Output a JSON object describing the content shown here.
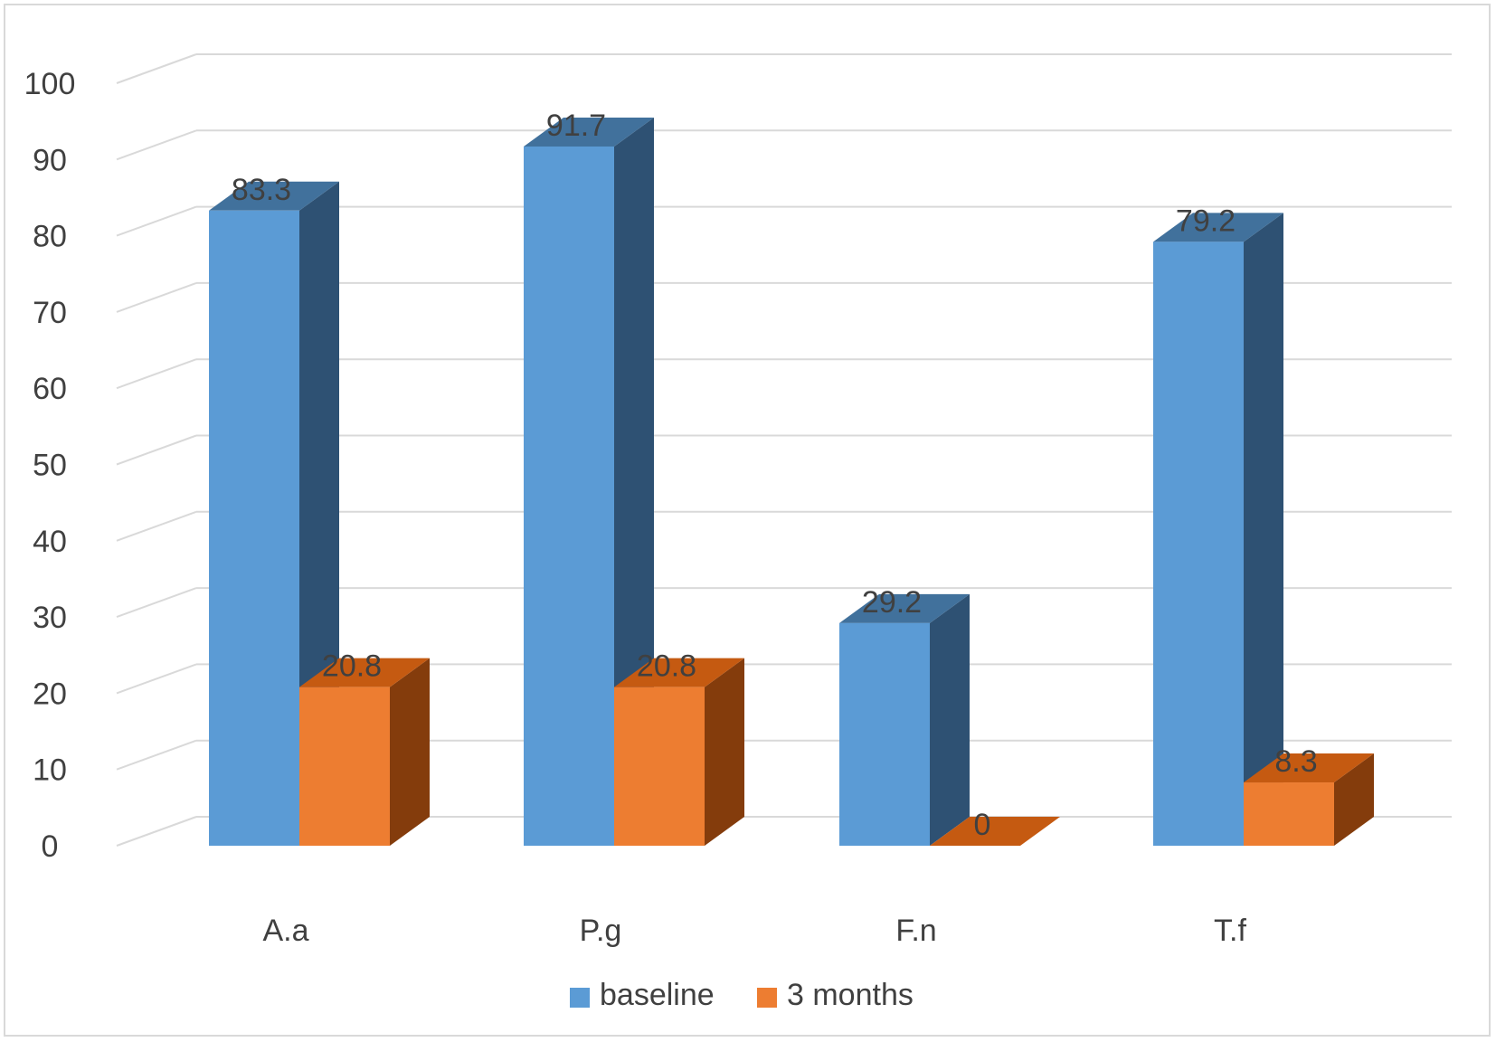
{
  "chart_data": {
    "type": "bar",
    "style": "3d-clustered-column",
    "title": "",
    "xlabel": "",
    "ylabel": "",
    "categories": [
      "A.a",
      "P.g",
      "F.n",
      "T.f"
    ],
    "series": [
      {
        "name": "baseline",
        "values": [
          83.3,
          91.7,
          29.2,
          79.2
        ],
        "color": "#5b9bd5",
        "side_color": "#2e5173",
        "top_color": "#41719c"
      },
      {
        "name": "3 months",
        "values": [
          20.8,
          20.8,
          0,
          8.3
        ],
        "color": "#ed7d31",
        "side_color": "#843c0c",
        "top_color": "#c55a11"
      }
    ],
    "data_labels": [
      [
        "83.3",
        "91.7",
        "29.2",
        "79.2"
      ],
      [
        "20.8",
        "20.8",
        "0",
        "8.3"
      ]
    ],
    "ylim": [
      0,
      100
    ],
    "y_ticks": [
      "0",
      "10",
      "20",
      "30",
      "40",
      "50",
      "60",
      "70",
      "80",
      "90",
      "100"
    ],
    "grid": true,
    "legend_position": "bottom",
    "colors": {
      "grid": "#d9d9d9",
      "text": "#404040"
    }
  }
}
